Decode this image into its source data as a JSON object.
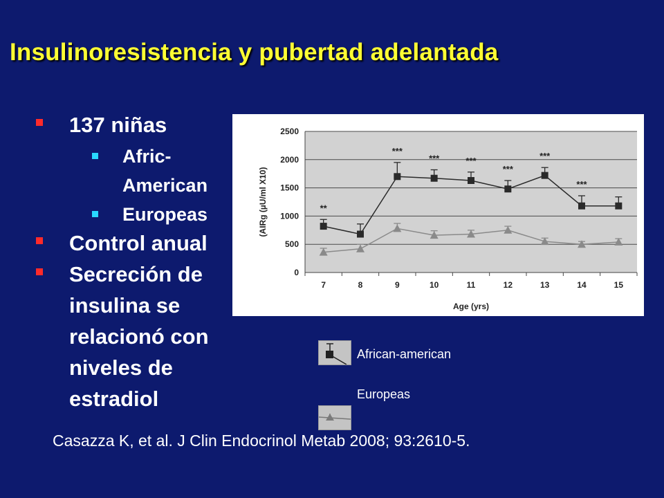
{
  "slide": {
    "title": "Insulinoresistencia y pubertad adelantada",
    "bullets": [
      {
        "text": "137 niñas",
        "level": 1
      },
      {
        "text": "Afric-",
        "level": 2
      },
      {
        "text": "American",
        "level": 2
      },
      {
        "text": "Europeas",
        "level": 2
      },
      {
        "text": "Control anual",
        "level": 1
      },
      {
        "text": "Secreción de",
        "level": 1
      },
      {
        "text": "insulina se",
        "level": 1
      },
      {
        "text": "relacionó con",
        "level": 1
      },
      {
        "text": "niveles de",
        "level": 1
      },
      {
        "text": "estradiol",
        "level": 1
      }
    ],
    "citation": "Casazza K, et al. J Clin Endocrinol Metab 2008; 93:2610-5.",
    "colors": {
      "background": "#0d1a6e",
      "title": "#ffff33",
      "bullet_level1": "#ff2a2a",
      "bullet_level2": "#29d8ff"
    }
  },
  "chart_data": {
    "type": "line",
    "title": "",
    "xlabel": "Age (yrs)",
    "ylabel": "(AIRg (µU/ml X10)",
    "categories": [
      "7",
      "8",
      "9",
      "10",
      "11",
      "12",
      "13",
      "14",
      "15"
    ],
    "ylim": [
      0,
      2500
    ],
    "yticks": [
      0,
      500,
      1000,
      1500,
      2000,
      2500
    ],
    "grid": true,
    "series": [
      {
        "name": "African-american",
        "marker": "square",
        "color": "#2a2a2a",
        "values": [
          820,
          680,
          1700,
          1670,
          1630,
          1480,
          1720,
          1180,
          1180
        ],
        "error": [
          120,
          180,
          250,
          150,
          150,
          150,
          140,
          180,
          160
        ],
        "significance": [
          "**",
          "",
          "***",
          "***",
          "***",
          "***",
          "***",
          "***",
          ""
        ]
      },
      {
        "name": "Europeas",
        "marker": "triangle",
        "color": "#8a8a8a",
        "values": [
          360,
          420,
          780,
          660,
          680,
          750,
          550,
          500,
          540
        ],
        "error": [
          70,
          80,
          90,
          80,
          70,
          70,
          60,
          50,
          60
        ]
      }
    ]
  }
}
